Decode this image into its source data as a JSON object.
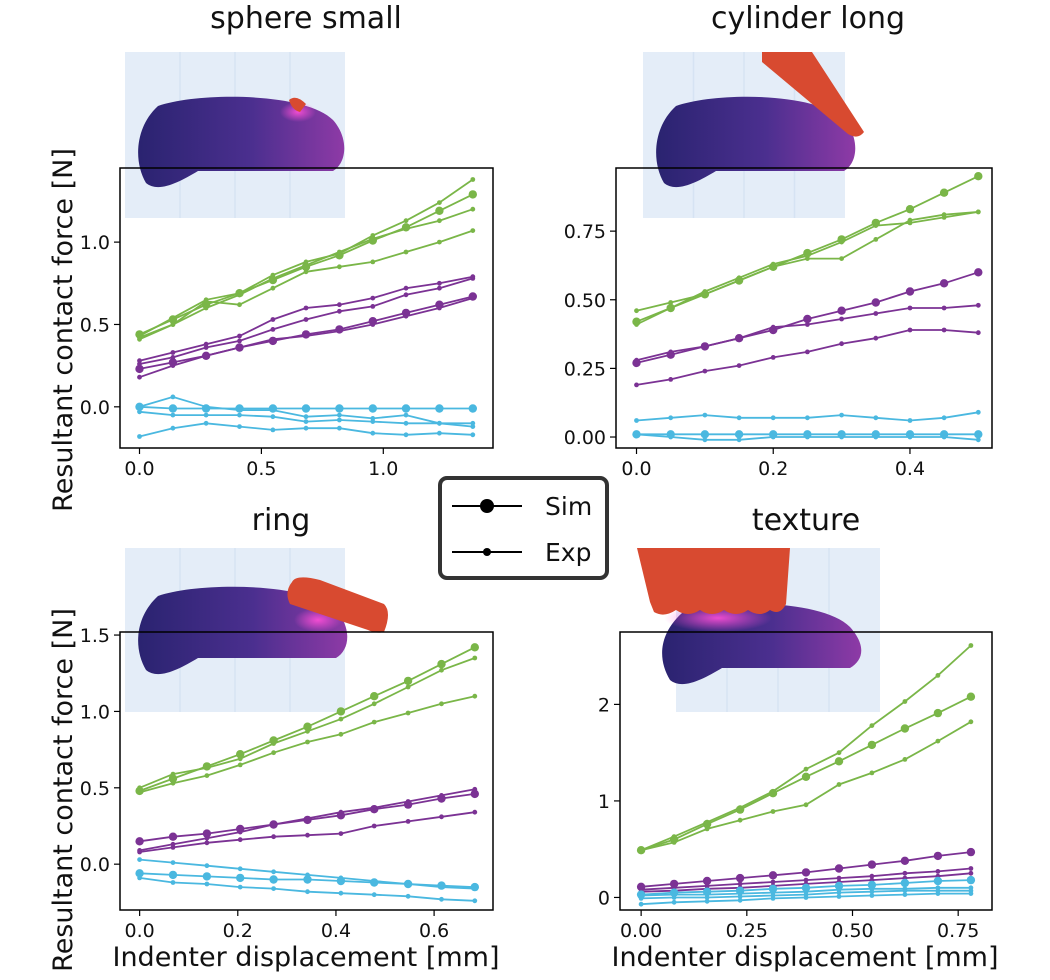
{
  "figure": {
    "ylabel": "Resultant contact force [N]",
    "xlabel": "Indenter displacement [mm]"
  },
  "legend": {
    "entries": [
      {
        "label": "Sim",
        "marker": "large-dot"
      },
      {
        "label": "Exp",
        "marker": "small-dot"
      }
    ]
  },
  "colors": {
    "green": "#7ab648",
    "purple": "#7b3294",
    "cyan": "#4ab8e0",
    "sensor": "#4b2f8f",
    "indenter": "#d84a30",
    "pcb": "#e4edf8"
  },
  "chart_data": [
    {
      "type": "line",
      "title": "sphere small",
      "xlabel": "Indenter displacement [mm]",
      "ylabel": "Resultant contact force [N]",
      "xlim": [
        -0.08,
        1.45
      ],
      "ylim": [
        -0.25,
        1.45
      ],
      "xticks": [
        0.0,
        0.5,
        1.0
      ],
      "yticks": [
        0.0,
        0.5,
        1.0
      ],
      "xtick_labels": [
        "0.0",
        "0.5",
        "1.0"
      ],
      "ytick_labels": [
        "0.0",
        "0.5",
        "1.0"
      ],
      "illustration": "sphere-small",
      "x": [
        0,
        0.137,
        0.273,
        0.41,
        0.547,
        0.683,
        0.82,
        0.957,
        1.093,
        1.23,
        1.367
      ],
      "series": [
        {
          "name": "green-sim",
          "color": "green",
          "kind": "sim",
          "values": [
            0.44,
            0.53,
            0.62,
            0.69,
            0.77,
            0.85,
            0.92,
            1.01,
            1.09,
            1.19,
            1.29
          ]
        },
        {
          "name": "green-exp-1",
          "color": "green",
          "kind": "exp",
          "values": [
            0.43,
            0.54,
            0.65,
            0.69,
            0.8,
            0.88,
            0.93,
            1.04,
            1.13,
            1.24,
            1.38
          ]
        },
        {
          "name": "green-exp-2",
          "color": "green",
          "kind": "exp",
          "values": [
            0.42,
            0.5,
            0.64,
            0.62,
            0.72,
            0.82,
            0.85,
            0.88,
            0.94,
            1.0,
            1.07
          ]
        },
        {
          "name": "green-exp-3",
          "color": "green",
          "kind": "exp",
          "values": [
            0.41,
            0.5,
            0.6,
            0.68,
            0.78,
            0.86,
            0.94,
            1.02,
            1.08,
            1.13,
            1.2
          ]
        },
        {
          "name": "purple-sim",
          "color": "purple",
          "kind": "sim",
          "values": [
            0.23,
            0.27,
            0.31,
            0.36,
            0.4,
            0.44,
            0.47,
            0.52,
            0.57,
            0.62,
            0.67
          ]
        },
        {
          "name": "purple-exp-1",
          "color": "purple",
          "kind": "exp",
          "values": [
            0.28,
            0.33,
            0.38,
            0.43,
            0.53,
            0.6,
            0.62,
            0.66,
            0.72,
            0.75,
            0.79
          ]
        },
        {
          "name": "purple-exp-2",
          "color": "purple",
          "kind": "exp",
          "values": [
            0.26,
            0.3,
            0.36,
            0.4,
            0.47,
            0.53,
            0.58,
            0.61,
            0.68,
            0.72,
            0.78
          ]
        },
        {
          "name": "purple-exp-3",
          "color": "purple",
          "kind": "exp",
          "values": [
            0.18,
            0.25,
            0.31,
            0.36,
            0.41,
            0.43,
            0.46,
            0.5,
            0.55,
            0.6,
            0.66
          ]
        },
        {
          "name": "cyan-sim",
          "color": "cyan",
          "kind": "sim",
          "values": [
            0.0,
            -0.01,
            -0.01,
            -0.01,
            -0.01,
            -0.01,
            -0.01,
            -0.01,
            -0.01,
            -0.01,
            -0.01
          ]
        },
        {
          "name": "cyan-exp-1",
          "color": "cyan",
          "kind": "exp",
          "values": [
            0.0,
            0.06,
            0.0,
            -0.02,
            -0.02,
            -0.06,
            -0.05,
            -0.07,
            -0.05,
            -0.1,
            -0.1
          ]
        },
        {
          "name": "cyan-exp-2",
          "color": "cyan",
          "kind": "exp",
          "values": [
            -0.03,
            -0.05,
            -0.05,
            -0.05,
            -0.06,
            -0.09,
            -0.08,
            -0.09,
            -0.1,
            -0.1,
            -0.12
          ]
        },
        {
          "name": "cyan-exp-3",
          "color": "cyan",
          "kind": "exp",
          "values": [
            -0.18,
            -0.13,
            -0.1,
            -0.12,
            -0.14,
            -0.13,
            -0.13,
            -0.16,
            -0.17,
            -0.16,
            -0.17
          ]
        }
      ]
    },
    {
      "type": "line",
      "title": "cylinder long",
      "xlabel": "Indenter displacement [mm]",
      "ylabel": "Resultant contact force [N]",
      "xlim": [
        -0.03,
        0.52
      ],
      "ylim": [
        -0.04,
        0.98
      ],
      "xticks": [
        0.0,
        0.2,
        0.4
      ],
      "yticks": [
        0.0,
        0.25,
        0.5,
        0.75
      ],
      "xtick_labels": [
        "0.0",
        "0.2",
        "0.4"
      ],
      "ytick_labels": [
        "0.00",
        "0.25",
        "0.50",
        "0.75"
      ],
      "illustration": "cylinder-long",
      "x": [
        0,
        0.05,
        0.1,
        0.15,
        0.2,
        0.25,
        0.3,
        0.35,
        0.4,
        0.45,
        0.5
      ],
      "series": [
        {
          "name": "green-sim",
          "color": "green",
          "kind": "sim",
          "values": [
            0.42,
            0.47,
            0.52,
            0.57,
            0.62,
            0.67,
            0.72,
            0.78,
            0.83,
            0.89,
            0.95
          ]
        },
        {
          "name": "green-exp-1",
          "color": "green",
          "kind": "exp",
          "values": [
            0.46,
            0.49,
            0.52,
            0.57,
            0.62,
            0.65,
            0.65,
            0.72,
            0.79,
            0.81,
            0.82
          ]
        },
        {
          "name": "green-exp-2",
          "color": "green",
          "kind": "exp",
          "values": [
            0.41,
            0.47,
            0.53,
            0.58,
            0.63,
            0.66,
            0.71,
            0.77,
            0.78,
            0.8,
            0.82
          ]
        },
        {
          "name": "purple-sim",
          "color": "purple",
          "kind": "sim",
          "values": [
            0.27,
            0.3,
            0.33,
            0.36,
            0.39,
            0.43,
            0.46,
            0.49,
            0.53,
            0.56,
            0.6
          ]
        },
        {
          "name": "purple-exp-1",
          "color": "purple",
          "kind": "exp",
          "values": [
            0.28,
            0.31,
            0.33,
            0.36,
            0.4,
            0.41,
            0.43,
            0.45,
            0.47,
            0.47,
            0.48
          ]
        },
        {
          "name": "purple-exp-2",
          "color": "purple",
          "kind": "exp",
          "values": [
            0.19,
            0.21,
            0.24,
            0.26,
            0.29,
            0.31,
            0.34,
            0.36,
            0.39,
            0.39,
            0.38
          ]
        },
        {
          "name": "cyan-sim",
          "color": "cyan",
          "kind": "sim",
          "values": [
            0.01,
            0.01,
            0.01,
            0.01,
            0.01,
            0.01,
            0.01,
            0.01,
            0.01,
            0.01,
            0.01
          ]
        },
        {
          "name": "cyan-exp-1",
          "color": "cyan",
          "kind": "exp",
          "values": [
            0.06,
            0.07,
            0.08,
            0.07,
            0.07,
            0.07,
            0.08,
            0.07,
            0.06,
            0.07,
            0.09
          ]
        },
        {
          "name": "cyan-exp-2",
          "color": "cyan",
          "kind": "exp",
          "values": [
            0.01,
            0.0,
            -0.01,
            -0.01,
            0.0,
            0.0,
            0.0,
            0.0,
            0.0,
            0.0,
            -0.01
          ]
        }
      ]
    },
    {
      "type": "line",
      "title": "ring",
      "xlabel": "Indenter displacement [mm]",
      "ylabel": "Resultant contact force [N]",
      "xlim": [
        -0.04,
        0.72
      ],
      "ylim": [
        -0.3,
        1.52
      ],
      "xticks": [
        0.0,
        0.2,
        0.4,
        0.6
      ],
      "yticks": [
        0.0,
        0.5,
        1.0,
        1.5
      ],
      "xtick_labels": [
        "0.0",
        "0.2",
        "0.4",
        "0.6"
      ],
      "ytick_labels": [
        "0.0",
        "0.5",
        "1.0",
        "1.5"
      ],
      "illustration": "ring",
      "x": [
        0,
        0.068,
        0.137,
        0.205,
        0.273,
        0.342,
        0.41,
        0.478,
        0.547,
        0.615,
        0.683
      ],
      "series": [
        {
          "name": "green-sim",
          "color": "green",
          "kind": "sim",
          "values": [
            0.48,
            0.56,
            0.64,
            0.72,
            0.81,
            0.9,
            1.0,
            1.1,
            1.2,
            1.31,
            1.42
          ]
        },
        {
          "name": "green-exp-1",
          "color": "green",
          "kind": "exp",
          "values": [
            0.5,
            0.59,
            0.63,
            0.69,
            0.79,
            0.87,
            0.95,
            1.05,
            1.16,
            1.27,
            1.35
          ]
        },
        {
          "name": "green-exp-2",
          "color": "green",
          "kind": "exp",
          "values": [
            0.47,
            0.53,
            0.58,
            0.65,
            0.73,
            0.8,
            0.85,
            0.93,
            0.99,
            1.05,
            1.1
          ]
        },
        {
          "name": "purple-sim",
          "color": "purple",
          "kind": "sim",
          "values": [
            0.15,
            0.18,
            0.2,
            0.23,
            0.26,
            0.29,
            0.32,
            0.36,
            0.39,
            0.43,
            0.46
          ]
        },
        {
          "name": "purple-exp-1",
          "color": "purple",
          "kind": "exp",
          "values": [
            0.09,
            0.13,
            0.17,
            0.21,
            0.26,
            0.3,
            0.34,
            0.37,
            0.41,
            0.45,
            0.49
          ]
        },
        {
          "name": "purple-exp-2",
          "color": "purple",
          "kind": "exp",
          "values": [
            0.08,
            0.11,
            0.14,
            0.16,
            0.18,
            0.19,
            0.2,
            0.25,
            0.28,
            0.31,
            0.34
          ]
        },
        {
          "name": "cyan-sim",
          "color": "cyan",
          "kind": "sim",
          "values": [
            -0.06,
            -0.07,
            -0.08,
            -0.09,
            -0.1,
            -0.1,
            -0.11,
            -0.12,
            -0.13,
            -0.14,
            -0.15
          ]
        },
        {
          "name": "cyan-exp-1",
          "color": "cyan",
          "kind": "exp",
          "values": [
            0.03,
            0.01,
            -0.01,
            -0.03,
            -0.05,
            -0.07,
            -0.09,
            -0.11,
            -0.13,
            -0.15,
            -0.16
          ]
        },
        {
          "name": "cyan-exp-2",
          "color": "cyan",
          "kind": "exp",
          "values": [
            -0.09,
            -0.12,
            -0.13,
            -0.15,
            -0.16,
            -0.18,
            -0.19,
            -0.2,
            -0.21,
            -0.23,
            -0.24
          ]
        }
      ]
    },
    {
      "type": "line",
      "title": "texture",
      "xlabel": "Indenter displacement [mm]",
      "ylabel": "Resultant contact force [N]",
      "xlim": [
        -0.05,
        0.83
      ],
      "ylim": [
        -0.13,
        2.75
      ],
      "xticks": [
        0.0,
        0.25,
        0.5,
        0.75
      ],
      "yticks": [
        0,
        1,
        2
      ],
      "xtick_labels": [
        "0.00",
        "0.25",
        "0.50",
        "0.75"
      ],
      "ytick_labels": [
        "0",
        "1",
        "2"
      ],
      "illustration": "texture",
      "x": [
        0,
        0.078,
        0.156,
        0.234,
        0.312,
        0.39,
        0.468,
        0.546,
        0.624,
        0.702,
        0.78
      ],
      "series": [
        {
          "name": "green-sim",
          "color": "green",
          "kind": "sim",
          "values": [
            0.49,
            0.6,
            0.76,
            0.91,
            1.08,
            1.25,
            1.41,
            1.58,
            1.75,
            1.91,
            2.08
          ]
        },
        {
          "name": "green-exp-1",
          "color": "green",
          "kind": "exp",
          "values": [
            0.49,
            0.63,
            0.78,
            0.93,
            1.1,
            1.33,
            1.5,
            1.78,
            2.03,
            2.3,
            2.61
          ]
        },
        {
          "name": "green-exp-2",
          "color": "green",
          "kind": "exp",
          "values": [
            0.49,
            0.57,
            0.71,
            0.8,
            0.89,
            0.96,
            1.17,
            1.29,
            1.43,
            1.62,
            1.82
          ]
        },
        {
          "name": "purple-sim",
          "color": "purple",
          "kind": "sim",
          "values": [
            0.11,
            0.14,
            0.17,
            0.2,
            0.23,
            0.26,
            0.3,
            0.34,
            0.38,
            0.43,
            0.47
          ]
        },
        {
          "name": "purple-exp-1",
          "color": "purple",
          "kind": "exp",
          "values": [
            0.08,
            0.1,
            0.12,
            0.14,
            0.16,
            0.18,
            0.2,
            0.22,
            0.25,
            0.27,
            0.3
          ]
        },
        {
          "name": "purple-exp-2",
          "color": "purple",
          "kind": "exp",
          "values": [
            0.06,
            0.07,
            0.09,
            0.1,
            0.12,
            0.14,
            0.16,
            0.18,
            0.2,
            0.22,
            0.25
          ]
        },
        {
          "name": "cyan-sim",
          "color": "cyan",
          "kind": "sim",
          "values": [
            0.03,
            0.05,
            0.06,
            0.07,
            0.09,
            0.1,
            0.12,
            0.13,
            0.15,
            0.17,
            0.18
          ]
        },
        {
          "name": "cyan-exp-1",
          "color": "cyan",
          "kind": "exp",
          "values": [
            0.02,
            0.03,
            0.03,
            0.04,
            0.05,
            0.06,
            0.08,
            0.09,
            0.09,
            0.1,
            0.1
          ]
        },
        {
          "name": "cyan-exp-2",
          "color": "cyan",
          "kind": "exp",
          "values": [
            -0.01,
            0.0,
            0.0,
            0.01,
            0.02,
            0.03,
            0.05,
            0.06,
            0.07,
            0.07,
            0.07
          ]
        },
        {
          "name": "cyan-exp-3",
          "color": "cyan",
          "kind": "exp",
          "values": [
            -0.07,
            -0.05,
            -0.04,
            -0.03,
            -0.01,
            0.0,
            0.01,
            0.02,
            0.03,
            0.04,
            0.04
          ]
        }
      ]
    }
  ]
}
